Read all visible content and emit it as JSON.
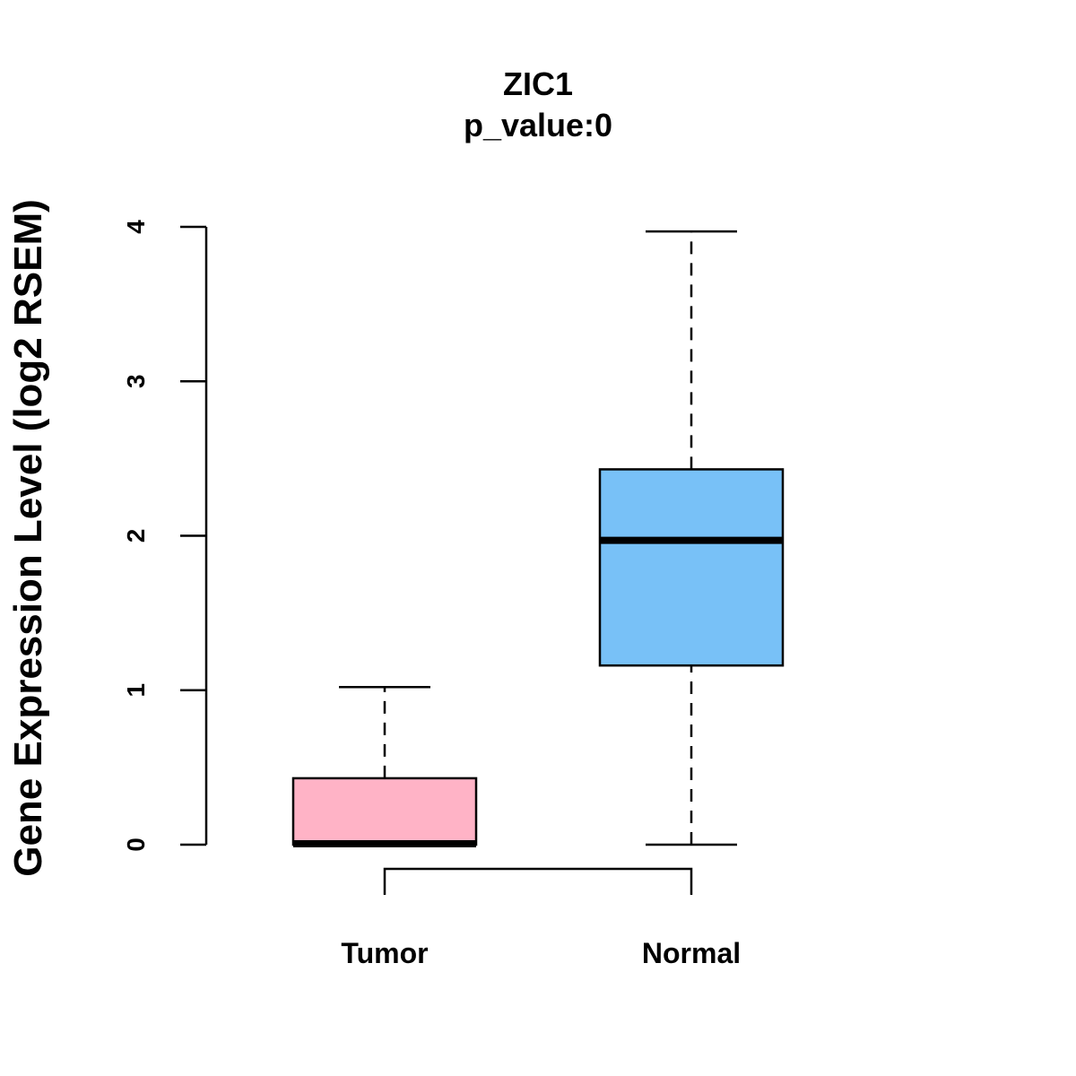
{
  "chart_data": {
    "type": "box",
    "title": "ZIC1",
    "subtitle": "p_value:0",
    "xlabel": "",
    "ylabel": "Gene Expression Level (log2 RSEM)",
    "ylim": [
      0,
      4
    ],
    "yticks": [
      "0",
      "1",
      "2",
      "3",
      "4"
    ],
    "grid": false,
    "categories": [
      "Tumor",
      "Normal"
    ],
    "boxes": [
      {
        "name": "Tumor",
        "min": 0,
        "q1": 0,
        "median": 0,
        "q3": 0.43,
        "max": 1.02,
        "color": "#FFB3C6"
      },
      {
        "name": "Normal",
        "min": 0,
        "q1": 1.16,
        "median": 1.97,
        "q3": 2.43,
        "max": 3.97,
        "color": "#78C1F7"
      }
    ]
  }
}
